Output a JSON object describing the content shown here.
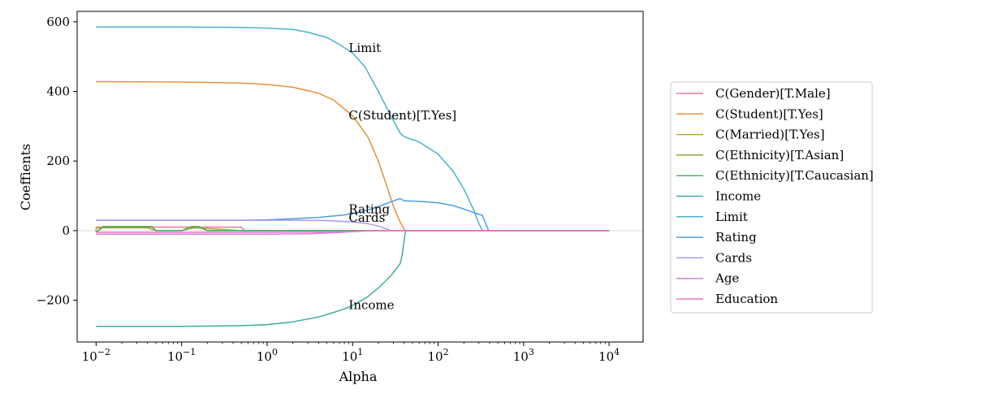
{
  "chart_data": {
    "type": "line",
    "title": "",
    "xlabel": "Alpha",
    "ylabel": "Coeffients",
    "xscale": "log",
    "xlim": [
      0.006,
      25000
    ],
    "ylim": [
      -320,
      630
    ],
    "xticks": [
      {
        "value": 0.01,
        "base": "10",
        "exp": "−2"
      },
      {
        "value": 0.1,
        "base": "10",
        "exp": "−1"
      },
      {
        "value": 1,
        "base": "10",
        "exp": "0"
      },
      {
        "value": 10,
        "base": "10",
        "exp": "1"
      },
      {
        "value": 100,
        "base": "10",
        "exp": "2"
      },
      {
        "value": 1000,
        "base": "10",
        "exp": "3"
      },
      {
        "value": 10000,
        "base": "10",
        "exp": "4"
      }
    ],
    "yticks": [
      {
        "value": 600,
        "label": "600"
      },
      {
        "value": 400,
        "label": "400"
      },
      {
        "value": 200,
        "label": "200"
      },
      {
        "value": 0,
        "label": "0"
      },
      {
        "value": -200,
        "label": "−200"
      }
    ],
    "zero_line": true,
    "legend_position": "right",
    "series": [
      {
        "name": "C(Gender)[T.Male]",
        "color": "#f0788f",
        "points": [
          [
            0.01,
            10
          ],
          [
            0.3,
            10
          ],
          [
            0.5,
            10
          ],
          [
            0.55,
            0
          ],
          [
            10000,
            0
          ]
        ]
      },
      {
        "name": "C(Student)[T.Yes]",
        "color": "#e6913a",
        "points": [
          [
            0.01,
            428
          ],
          [
            0.1,
            427
          ],
          [
            0.5,
            424
          ],
          [
            1,
            420
          ],
          [
            2,
            412
          ],
          [
            4,
            395
          ],
          [
            6,
            375
          ],
          [
            8,
            350
          ],
          [
            10,
            330
          ],
          [
            15,
            270
          ],
          [
            20,
            200
          ],
          [
            25,
            130
          ],
          [
            30,
            70
          ],
          [
            35,
            30
          ],
          [
            40,
            5
          ],
          [
            42,
            0
          ],
          [
            10000,
            0
          ]
        ]
      },
      {
        "name": "C(Married)[T.Yes]",
        "color": "#b9a536",
        "points": [
          [
            0.01,
            -5
          ],
          [
            0.01,
            8
          ],
          [
            0.04,
            8
          ],
          [
            0.05,
            0
          ],
          [
            0.1,
            0
          ],
          [
            0.12,
            5
          ],
          [
            0.15,
            8
          ],
          [
            0.5,
            0
          ],
          [
            10000,
            0
          ]
        ]
      },
      {
        "name": "C(Ethnicity)[T.Asian]",
        "color": "#91a43c",
        "points": [
          [
            0.01,
            -5
          ],
          [
            0.012,
            12
          ],
          [
            0.045,
            12
          ],
          [
            0.05,
            0
          ],
          [
            0.1,
            0
          ],
          [
            0.13,
            12
          ],
          [
            0.16,
            12
          ],
          [
            0.2,
            0
          ],
          [
            0.5,
            0
          ],
          [
            10000,
            0
          ]
        ]
      },
      {
        "name": "C(Ethnicity)[T.Caucasian]",
        "color": "#4fb061",
        "points": [
          [
            0.01,
            -5
          ],
          [
            0.012,
            10
          ],
          [
            0.045,
            10
          ],
          [
            0.05,
            0
          ],
          [
            0.1,
            0
          ],
          [
            0.13,
            10
          ],
          [
            0.16,
            10
          ],
          [
            0.2,
            0
          ],
          [
            0.5,
            0
          ],
          [
            10000,
            0
          ]
        ]
      },
      {
        "name": "Income",
        "color": "#3fad99",
        "points": [
          [
            0.01,
            -275
          ],
          [
            0.1,
            -275
          ],
          [
            0.5,
            -273
          ],
          [
            1,
            -270
          ],
          [
            2,
            -262
          ],
          [
            4,
            -248
          ],
          [
            6,
            -235
          ],
          [
            8,
            -225
          ],
          [
            10,
            -215
          ],
          [
            15,
            -190
          ],
          [
            20,
            -165
          ],
          [
            28,
            -130
          ],
          [
            36,
            -95
          ],
          [
            38,
            -70
          ],
          [
            41,
            -10
          ],
          [
            42,
            0
          ],
          [
            10000,
            0
          ]
        ]
      },
      {
        "name": "Limit",
        "color": "#4ab3c9",
        "points": [
          [
            0.01,
            585
          ],
          [
            0.1,
            585
          ],
          [
            0.5,
            584
          ],
          [
            1,
            582
          ],
          [
            2,
            578
          ],
          [
            3,
            570
          ],
          [
            5,
            555
          ],
          [
            7,
            535
          ],
          [
            10,
            510
          ],
          [
            14,
            470
          ],
          [
            20,
            400
          ],
          [
            28,
            330
          ],
          [
            36,
            280
          ],
          [
            40,
            270
          ],
          [
            60,
            255
          ],
          [
            100,
            220
          ],
          [
            150,
            170
          ],
          [
            200,
            120
          ],
          [
            260,
            60
          ],
          [
            300,
            20
          ],
          [
            330,
            0
          ],
          [
            10000,
            0
          ]
        ]
      },
      {
        "name": "Rating",
        "color": "#4f9edf",
        "points": [
          [
            0.01,
            30
          ],
          [
            0.1,
            30
          ],
          [
            0.5,
            30
          ],
          [
            1,
            31
          ],
          [
            2,
            34
          ],
          [
            4,
            38
          ],
          [
            8,
            45
          ],
          [
            12,
            53
          ],
          [
            18,
            65
          ],
          [
            25,
            78
          ],
          [
            32,
            88
          ],
          [
            36,
            92
          ],
          [
            40,
            86
          ],
          [
            60,
            84
          ],
          [
            100,
            80
          ],
          [
            150,
            72
          ],
          [
            200,
            62
          ],
          [
            260,
            52
          ],
          [
            330,
            44
          ],
          [
            360,
            20
          ],
          [
            390,
            0
          ],
          [
            10000,
            0
          ]
        ]
      },
      {
        "name": "Cards",
        "color": "#a99bea",
        "points": [
          [
            0.01,
            30
          ],
          [
            0.1,
            30
          ],
          [
            0.3,
            30
          ],
          [
            1,
            30
          ],
          [
            2,
            30
          ],
          [
            5,
            29
          ],
          [
            10,
            25
          ],
          [
            15,
            20
          ],
          [
            20,
            13
          ],
          [
            25,
            5
          ],
          [
            28,
            0
          ],
          [
            10000,
            0
          ]
        ]
      },
      {
        "name": "Age",
        "color": "#d77ee6",
        "points": [
          [
            0.01,
            -10
          ],
          [
            0.1,
            -10
          ],
          [
            1,
            -10
          ],
          [
            3,
            -9
          ],
          [
            6,
            -6
          ],
          [
            10,
            -3
          ],
          [
            15,
            -1
          ],
          [
            20,
            0
          ],
          [
            10000,
            0
          ]
        ]
      },
      {
        "name": "Education",
        "color": "#ee74c0",
        "points": [
          [
            0.01,
            -5
          ],
          [
            1,
            -5
          ],
          [
            5,
            -4
          ],
          [
            10,
            -2
          ],
          [
            20,
            0
          ],
          [
            10000,
            0
          ]
        ]
      }
    ],
    "annotations": [
      {
        "text": "Limit",
        "x": 9,
        "y": 513
      },
      {
        "text": "C(Student)[T.Yes]",
        "x": 9,
        "y": 320
      },
      {
        "text": "Rating",
        "x": 9,
        "y": 50
      },
      {
        "text": "Cards",
        "x": 9,
        "y": 25
      },
      {
        "text": "Income",
        "x": 9,
        "y": -225
      }
    ]
  }
}
